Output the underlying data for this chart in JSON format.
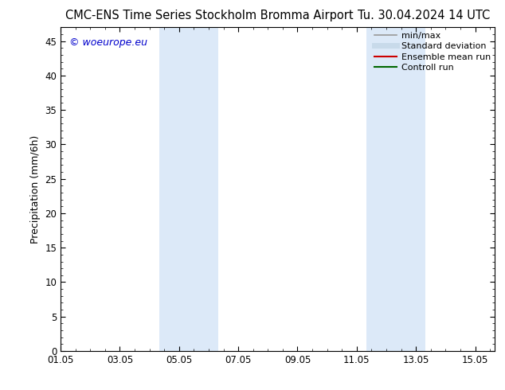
{
  "title_left": "CMC-ENS Time Series Stockholm Bromma Airport",
  "title_right": "Tu. 30.04.2024 14 UTC",
  "ylabel": "Precipitation (mm/6h)",
  "xlabel": "",
  "xlim": [
    0,
    14.667
  ],
  "ylim": [
    0,
    47
  ],
  "yticks": [
    0,
    5,
    10,
    15,
    20,
    25,
    30,
    35,
    40,
    45
  ],
  "xtick_labels": [
    "01.05",
    "03.05",
    "05.05",
    "07.05",
    "09.05",
    "11.05",
    "13.05",
    "15.05"
  ],
  "xtick_positions": [
    0,
    2,
    4,
    6,
    8,
    10,
    12,
    14
  ],
  "bg_color": "#ffffff",
  "plot_bg_color": "#ffffff",
  "shaded_bands": [
    {
      "x_start": 3.33,
      "x_end": 5.33,
      "color": "#dce9f8"
    },
    {
      "x_start": 10.33,
      "x_end": 12.33,
      "color": "#dce9f8"
    }
  ],
  "legend_items": [
    {
      "label": "min/max",
      "color": "#999999",
      "lw": 1.2
    },
    {
      "label": "Standard deviation",
      "color": "#c8daea",
      "lw": 5
    },
    {
      "label": "Ensemble mean run",
      "color": "#cc0000",
      "lw": 1.5
    },
    {
      "label": "Controll run",
      "color": "#006600",
      "lw": 1.5
    }
  ],
  "watermark_text": "© woeurope.eu",
  "watermark_color": "#0000cc",
  "title_fontsize": 10.5,
  "axis_label_fontsize": 9,
  "tick_fontsize": 8.5,
  "legend_fontsize": 8
}
